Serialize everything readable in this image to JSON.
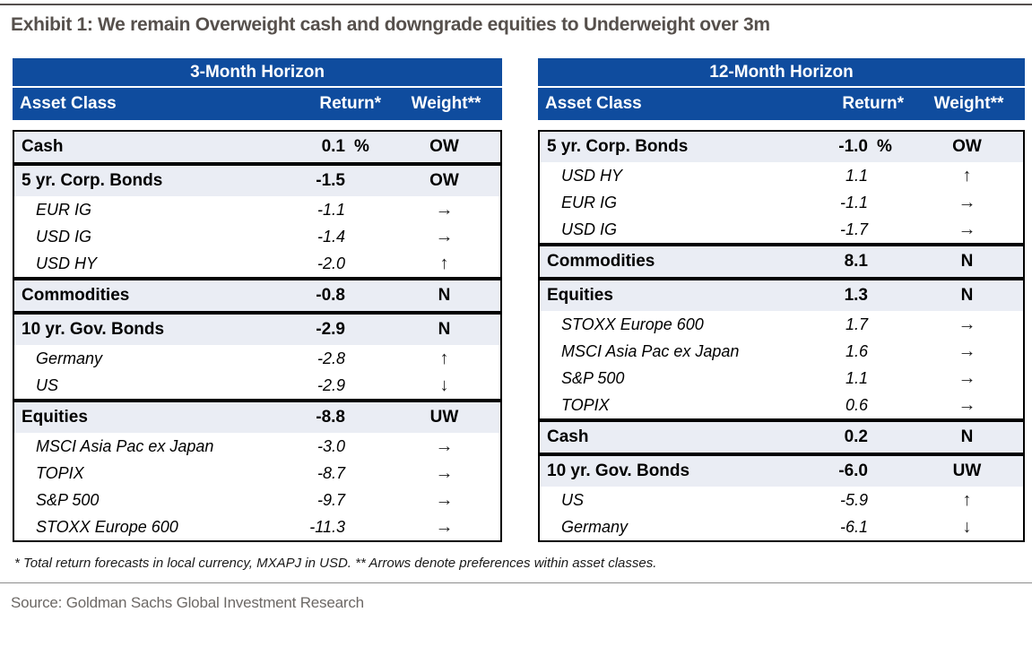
{
  "page": {
    "title": "Exhibit 1: We remain Overweight cash and downgrade equities to Underweight over 3m",
    "footnote": "* Total return forecasts in local currency, MXAPJ in USD. ** Arrows denote preferences within asset classes.",
    "source": "Source: Goldman Sachs Global Investment Research"
  },
  "colors": {
    "header_blue": "#0F4C9E",
    "row_light": "#EAEDF4",
    "title_gray": "#56504C",
    "source_gray": "#6C6865",
    "arrow_color": "#1F1F1F"
  },
  "tables": [
    {
      "title": "3-Month Horizon",
      "columns": {
        "asset": "Asset Class",
        "return": "Return*",
        "weight": "Weight**"
      },
      "sections": [
        {
          "header": {
            "name": "Cash",
            "return": "0.1",
            "unit": "%",
            "weight": "OW"
          },
          "rows": []
        },
        {
          "header": {
            "name": "5 yr. Corp. Bonds",
            "return": "-1.5",
            "weight": "OW"
          },
          "rows": [
            {
              "name": "EUR IG",
              "return": "-1.1",
              "arrow": "→"
            },
            {
              "name": "USD IG",
              "return": "-1.4",
              "arrow": "→"
            },
            {
              "name": "USD HY",
              "return": "-2.0",
              "arrow": "↑"
            }
          ]
        },
        {
          "header": {
            "name": "Commodities",
            "return": "-0.8",
            "weight": "N"
          },
          "rows": []
        },
        {
          "header": {
            "name": "10 yr. Gov. Bonds",
            "return": "-2.9",
            "weight": "N"
          },
          "rows": [
            {
              "name": "Germany",
              "return": "-2.8",
              "arrow": "↑"
            },
            {
              "name": "US",
              "return": "-2.9",
              "arrow": "↓"
            }
          ]
        },
        {
          "header": {
            "name": "Equities",
            "return": "-8.8",
            "weight": "UW"
          },
          "rows": [
            {
              "name": "MSCI Asia Pac ex Japan",
              "return": "-3.0",
              "arrow": "→"
            },
            {
              "name": "TOPIX",
              "return": "-8.7",
              "arrow": "→"
            },
            {
              "name": "S&P 500",
              "return": "-9.7",
              "arrow": "→"
            },
            {
              "name": "STOXX Europe 600",
              "return": "-11.3",
              "arrow": "→"
            }
          ]
        }
      ]
    },
    {
      "title": "12-Month Horizon",
      "columns": {
        "asset": "Asset Class",
        "return": "Return*",
        "weight": "Weight**"
      },
      "sections": [
        {
          "header": {
            "name": "5 yr. Corp. Bonds",
            "return": "-1.0",
            "unit": "%",
            "weight": "OW"
          },
          "rows": [
            {
              "name": "USD HY",
              "return": "1.1",
              "arrow": "↑"
            },
            {
              "name": "EUR IG",
              "return": "-1.1",
              "arrow": "→"
            },
            {
              "name": "USD IG",
              "return": "-1.7",
              "arrow": "→"
            }
          ]
        },
        {
          "header": {
            "name": "Commodities",
            "return": "8.1",
            "weight": "N"
          },
          "rows": []
        },
        {
          "header": {
            "name": "Equities",
            "return": "1.3",
            "weight": "N"
          },
          "rows": [
            {
              "name": "STOXX Europe 600",
              "return": "1.7",
              "arrow": "→"
            },
            {
              "name": "MSCI Asia Pac ex Japan",
              "return": "1.6",
              "arrow": "→"
            },
            {
              "name": "S&P 500",
              "return": "1.1",
              "arrow": "→"
            },
            {
              "name": "TOPIX",
              "return": "0.6",
              "arrow": "→"
            }
          ]
        },
        {
          "header": {
            "name": "Cash",
            "return": "0.2",
            "weight": "N"
          },
          "rows": []
        },
        {
          "header": {
            "name": "10 yr. Gov. Bonds",
            "return": "-6.0",
            "weight": "UW"
          },
          "rows": [
            {
              "name": "US",
              "return": "-5.9",
              "arrow": "↑"
            },
            {
              "name": "Germany",
              "return": "-6.1",
              "arrow": "↓"
            }
          ]
        }
      ]
    }
  ]
}
